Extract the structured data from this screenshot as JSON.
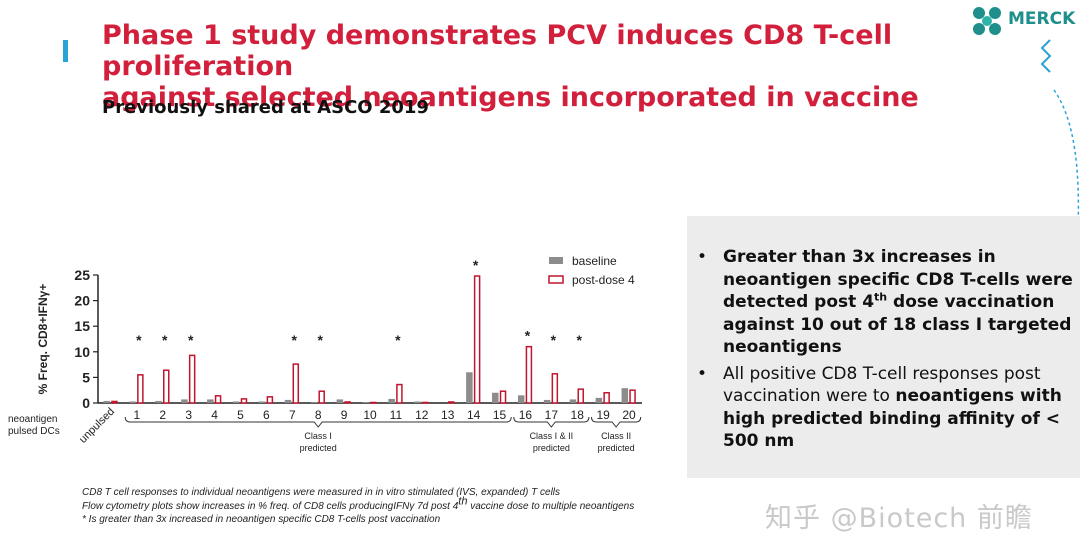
{
  "slide": {
    "title_line1": "Phase 1 study demonstrates PCV induces CD8 T-cell proliferation",
    "title_line2": "against selected neoantigens incorporated in vaccine",
    "subtitle": "Previously shared at ASCO 2019",
    "logo_text": "MERCK",
    "accent_color": "#d21f3c",
    "brand_color": "#1f8f8b"
  },
  "bullets": {
    "b1_pre": "Greater than 3x increases in neoantigen specific CD8 T-cells were detected post 4",
    "b1_sup": "th",
    "b1_post": " dose vaccination against 10 out of 18 class I targeted neoantigens",
    "b2_plain": "All positive CD8 T-cell responses post vaccination were to ",
    "b2_bold": "neoantigens with high predicted binding affinity of < 500 nm"
  },
  "footnotes": {
    "line1": "CD8 T cell responses to individual neoantigens were measured in in vitro stimulated (IVS, expanded) T cells",
    "line2_pre": "Flow cytometry plots show increases in % freq. of CD8 cells producingIFNγ 7d post 4",
    "line2_sup": "th",
    "line2_post": " vaccine dose to multiple neoantigens",
    "line3": "* Is greater than 3x increased in neoantigen specific CD8 T-cells post vaccination"
  },
  "watermark": "知乎 @Biotech 前瞻",
  "chart_data": {
    "type": "bar",
    "ylabel": "% Freq. CD8+IFNγ+",
    "xlabel_left": "neoantigen pulsed DCs",
    "ylim": [
      0,
      25
    ],
    "yticks": [
      0,
      5,
      10,
      15,
      20,
      25
    ],
    "categories": [
      "unpulsed",
      "1",
      "2",
      "3",
      "4",
      "5",
      "6",
      "7",
      "8",
      "9",
      "10",
      "11",
      "12",
      "13",
      "14",
      "15",
      "16",
      "17",
      "18",
      "19",
      "20"
    ],
    "series": [
      {
        "name": "baseline",
        "color": "#8c8c8c",
        "values": [
          0.4,
          0.3,
          0.4,
          0.7,
          0.7,
          0.3,
          0.3,
          0.6,
          0.2,
          0.7,
          0.2,
          0.8,
          0.3,
          0.0,
          6.0,
          2.0,
          1.5,
          0.6,
          0.7,
          1.0,
          2.9
        ]
      },
      {
        "name": "post-dose 4",
        "color": "#c0152f",
        "values": [
          0.3,
          5.5,
          6.4,
          9.3,
          1.4,
          0.8,
          1.2,
          7.6,
          2.3,
          0.2,
          0.1,
          3.6,
          0.1,
          0.2,
          24.8,
          2.3,
          11.0,
          5.7,
          2.7,
          2.0,
          2.5
        ]
      }
    ],
    "significant": [
      "1",
      "2",
      "3",
      "7",
      "8",
      "11",
      "14",
      "16",
      "17",
      "18"
    ],
    "significant_marker": "*",
    "groups": [
      {
        "label_line1": "Class I",
        "label_line2": "predicted",
        "from": "1",
        "to": "15"
      },
      {
        "label_line1": "Class I & II",
        "label_line2": "predicted",
        "from": "16",
        "to": "18"
      },
      {
        "label_line1": "Class II",
        "label_line2": "predicted",
        "from": "19",
        "to": "20"
      }
    ],
    "legend_position": "top-right"
  }
}
